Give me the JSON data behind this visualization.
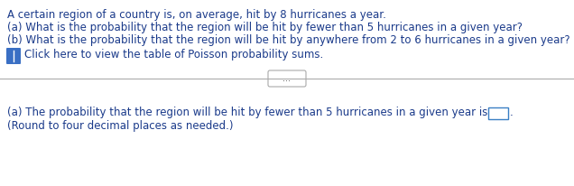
{
  "line1": "A certain region of a country is, on average, hit by 8 hurricanes a year.",
  "line2": "(a) What is the probability that the region will be hit by fewer than 5 hurricanes in a given year?",
  "line3": "(b) What is the probability that the region will be hit by anywhere from 2 to 6 hurricanes in a given year?",
  "link_text": "Click here to view the table of Poisson probability sums.",
  "divider_text": "...",
  "answer_line": "(a) The probability that the region will be hit by fewer than 5 hurricanes in a given year is",
  "round_note": "(Round to four decimal places as needed.)",
  "text_color": "#1a3a8a",
  "icon_color": "#3a6fc4",
  "divider_color": "#aaaaaa",
  "bg_color": "#ffffff",
  "font_size": 8.5,
  "fig_width": 6.36,
  "fig_height": 2.06,
  "dpi": 100
}
